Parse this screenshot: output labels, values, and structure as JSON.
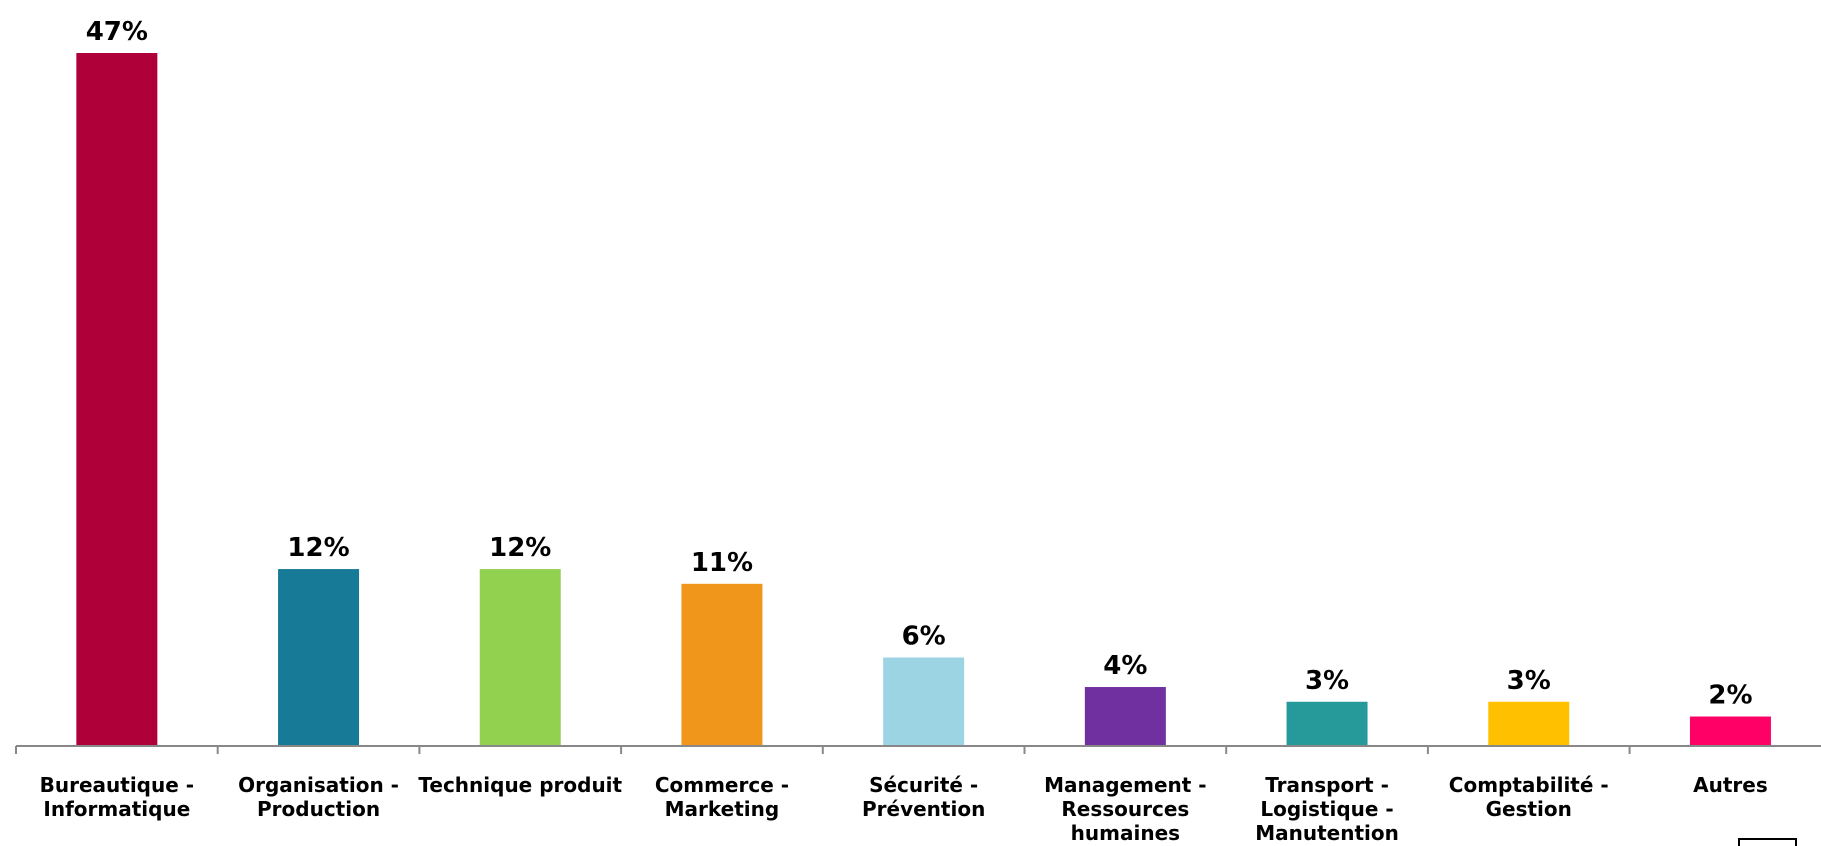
{
  "chart_data": {
    "type": "bar",
    "categories": [
      [
        "Bureautique -",
        "Informatique"
      ],
      [
        "Organisation -",
        "Production"
      ],
      [
        "Technique produit"
      ],
      [
        "Commerce -",
        "Marketing"
      ],
      [
        "Sécurité -",
        "Prévention"
      ],
      [
        "Management -",
        "Ressources",
        "humaines"
      ],
      [
        "Transport -",
        "Logistique -",
        "Manutention"
      ],
      [
        "Comptabilité -",
        "Gestion"
      ],
      [
        "Autres"
      ]
    ],
    "values": [
      47,
      12,
      12,
      11,
      6,
      4,
      3,
      3,
      2
    ],
    "value_labels": [
      "47%",
      "12%",
      "12%",
      "11%",
      "6%",
      "4%",
      "3%",
      "3%",
      "2%"
    ],
    "colors": [
      "#b0003a",
      "#177a96",
      "#92d050",
      "#f0961a",
      "#9dd4e3",
      "#7030a0",
      "#269a9a",
      "#ffc000",
      "#ff0066"
    ],
    "ylim": [
      0,
      47
    ],
    "grid": false,
    "legend": "none"
  }
}
